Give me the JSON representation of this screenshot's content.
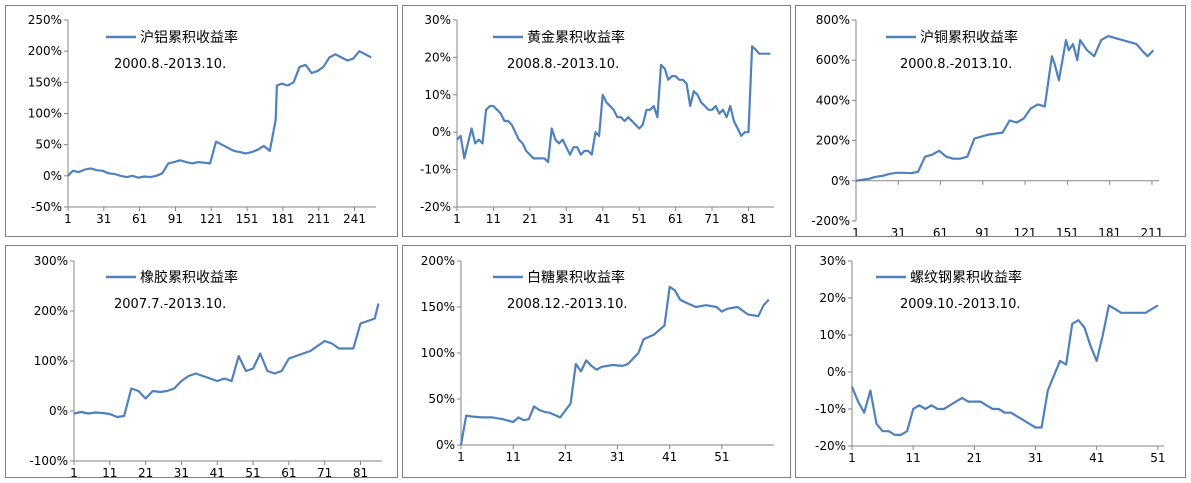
{
  "line_color": "#4f81bd",
  "chart_data": [
    {
      "type": "line",
      "legend": "沪铝累积收益率",
      "period": "2000.8.-2013.10.",
      "y_ticks": [
        -50,
        0,
        50,
        100,
        150,
        200,
        250
      ],
      "y_tick_labels": [
        "-50%",
        "0%",
        "50%",
        "100%",
        "150%",
        "200%",
        "250%"
      ],
      "ylim": [
        -50,
        250
      ],
      "x_ticks": [
        1,
        31,
        61,
        91,
        121,
        151,
        181,
        211,
        241
      ],
      "x_tick_labels": [
        "1",
        "31",
        "61",
        "91",
        "121",
        "151",
        "181",
        "211",
        "241"
      ],
      "xlim": [
        1,
        259
      ],
      "x_axis_at": -50,
      "series": [
        {
          "x": [
            1,
            5,
            10,
            15,
            20,
            25,
            30,
            35,
            40,
            45,
            50,
            55,
            60,
            65,
            70,
            75,
            80,
            85,
            90,
            95,
            100,
            105,
            110,
            115,
            120,
            125,
            130,
            135,
            140,
            145,
            150,
            155,
            160,
            165,
            170,
            175,
            176,
            180,
            185,
            190,
            195,
            200,
            205,
            210,
            215,
            220,
            225,
            230,
            235,
            240,
            245,
            250,
            255
          ],
          "y": [
            0,
            8,
            6,
            10,
            12,
            9,
            8,
            4,
            3,
            0,
            -2,
            0,
            -3,
            -1,
            -2,
            0,
            4,
            20,
            22,
            25,
            22,
            20,
            22,
            21,
            20,
            55,
            50,
            45,
            40,
            38,
            36,
            38,
            42,
            48,
            40,
            90,
            145,
            148,
            145,
            150,
            175,
            178,
            165,
            168,
            175,
            190,
            195,
            190,
            185,
            188,
            200,
            195,
            190
          ]
        }
      ]
    },
    {
      "type": "line",
      "legend": "黄金累积收益率",
      "period": "2008.8.-2013.10.",
      "y_ticks": [
        -20,
        -10,
        0,
        10,
        20,
        30
      ],
      "y_tick_labels": [
        "-20%",
        "-10%",
        "0%",
        "10%",
        "20%",
        "30%"
      ],
      "ylim": [
        -20,
        30
      ],
      "x_ticks": [
        1,
        11,
        21,
        31,
        41,
        51,
        61,
        71,
        81
      ],
      "x_tick_labels": [
        "1",
        "11",
        "21",
        "31",
        "41",
        "51",
        "61",
        "71",
        "81"
      ],
      "xlim": [
        1,
        88
      ],
      "x_axis_at": -20,
      "series": [
        {
          "x": [
            1,
            2,
            3,
            4,
            5,
            6,
            7,
            8,
            9,
            10,
            11,
            12,
            13,
            14,
            15,
            16,
            17,
            18,
            19,
            20,
            21,
            22,
            23,
            24,
            25,
            26,
            27,
            28,
            29,
            30,
            31,
            32,
            33,
            34,
            35,
            36,
            37,
            38,
            39,
            40,
            41,
            42,
            43,
            44,
            45,
            46,
            47,
            48,
            49,
            50,
            51,
            52,
            53,
            54,
            55,
            56,
            57,
            58,
            59,
            60,
            61,
            62,
            63,
            64,
            65,
            66,
            67,
            68,
            69,
            70,
            71,
            72,
            73,
            74,
            75,
            76,
            77,
            78,
            79,
            80,
            81,
            82,
            83,
            84,
            85,
            86,
            87
          ],
          "y": [
            -2,
            -1,
            -7,
            -3,
            1,
            -3,
            -2,
            -3,
            6,
            7,
            7,
            6,
            5,
            3,
            3,
            2,
            0,
            -2,
            -3,
            -5,
            -6,
            -7,
            -7,
            -7,
            -7,
            -8,
            1,
            -2,
            -3,
            -2,
            -4,
            -6,
            -4,
            -4,
            -6,
            -5,
            -5,
            -6,
            0,
            -1,
            10,
            8,
            7,
            6,
            4,
            4,
            3,
            4,
            3,
            2,
            1,
            2,
            6,
            6,
            7,
            4,
            18,
            17,
            14,
            15,
            15,
            14,
            14,
            13,
            7,
            11,
            10,
            8,
            7,
            6,
            6,
            7,
            5,
            6,
            4,
            7,
            3,
            1,
            -1,
            0,
            0,
            23,
            22,
            21,
            21,
            21,
            21
          ]
        }
      ]
    },
    {
      "type": "line",
      "legend": "沪铜累积收益率",
      "period": "2000.8.-2013.10.",
      "y_ticks": [
        -200,
        0,
        200,
        400,
        600,
        800
      ],
      "y_tick_labels": [
        "-200%",
        "0%",
        "200%",
        "400%",
        "600%",
        "800%"
      ],
      "ylim": [
        -200,
        800
      ],
      "x_ticks": [
        1,
        31,
        61,
        91,
        121,
        151,
        181,
        211
      ],
      "x_tick_labels": [
        "1",
        "31",
        "61",
        "91",
        "121",
        "151",
        "181",
        "211"
      ],
      "xlim": [
        1,
        216
      ],
      "x_axis_at": 0,
      "series": [
        {
          "x": [
            1,
            5,
            10,
            15,
            20,
            25,
            30,
            35,
            40,
            45,
            50,
            55,
            60,
            65,
            70,
            75,
            80,
            85,
            90,
            95,
            100,
            105,
            110,
            115,
            120,
            125,
            130,
            135,
            140,
            142,
            145,
            150,
            152,
            155,
            158,
            160,
            165,
            170,
            175,
            180,
            185,
            190,
            195,
            200,
            205,
            208,
            212
          ],
          "y": [
            0,
            5,
            10,
            20,
            25,
            35,
            40,
            40,
            38,
            45,
            120,
            130,
            150,
            120,
            110,
            110,
            120,
            210,
            220,
            230,
            235,
            240,
            300,
            290,
            310,
            360,
            380,
            370,
            620,
            580,
            500,
            700,
            650,
            680,
            600,
            700,
            650,
            620,
            700,
            720,
            710,
            700,
            690,
            680,
            640,
            620,
            650
          ]
        }
      ]
    },
    {
      "type": "line",
      "legend": "橡胶累积收益率",
      "period": "2007.7.-2013.10.",
      "y_ticks": [
        -100,
        0,
        100,
        200,
        300
      ],
      "y_tick_labels": [
        "-100%",
        "0%",
        "100%",
        "200%",
        "300%"
      ],
      "ylim": [
        -100,
        300
      ],
      "x_ticks": [
        1,
        11,
        21,
        31,
        41,
        51,
        61,
        71,
        81
      ],
      "x_tick_labels": [
        "1",
        "11",
        "21",
        "31",
        "41",
        "51",
        "61",
        "71",
        "81"
      ],
      "xlim": [
        1,
        87
      ],
      "x_axis_at": -100,
      "series": [
        {
          "x": [
            1,
            3,
            5,
            7,
            9,
            11,
            13,
            15,
            17,
            19,
            21,
            23,
            25,
            27,
            29,
            31,
            33,
            35,
            37,
            39,
            41,
            43,
            45,
            47,
            49,
            51,
            53,
            55,
            57,
            59,
            61,
            63,
            65,
            67,
            69,
            71,
            73,
            75,
            77,
            79,
            81,
            83,
            85,
            86
          ],
          "y": [
            -5,
            -2,
            -5,
            -3,
            -4,
            -6,
            -12,
            -10,
            45,
            40,
            25,
            40,
            38,
            40,
            45,
            60,
            70,
            75,
            70,
            65,
            60,
            65,
            60,
            110,
            80,
            85,
            115,
            80,
            75,
            80,
            105,
            110,
            115,
            120,
            130,
            140,
            135,
            125,
            125,
            125,
            175,
            180,
            185,
            215
          ]
        }
      ]
    },
    {
      "type": "line",
      "legend": "白糖累积收益率",
      "period": "2008.12.-2013.10.",
      "y_ticks": [
        0,
        50,
        100,
        150,
        200
      ],
      "y_tick_labels": [
        "0%",
        "50%",
        "100%",
        "150%",
        "200%"
      ],
      "ylim": [
        0,
        200
      ],
      "x_ticks": [
        1,
        11,
        21,
        31,
        41,
        51
      ],
      "x_tick_labels": [
        "1",
        "11",
        "21",
        "31",
        "41",
        "51"
      ],
      "xlim": [
        1,
        61
      ],
      "x_axis_at": 0,
      "series": [
        {
          "x": [
            1,
            2,
            3,
            5,
            7,
            9,
            11,
            12,
            13,
            14,
            15,
            16,
            17,
            18,
            20,
            22,
            23,
            24,
            25,
            26,
            27,
            28,
            30,
            32,
            33,
            35,
            36,
            38,
            40,
            41,
            42,
            43,
            44,
            46,
            48,
            50,
            51,
            52,
            54,
            56,
            58,
            59,
            60
          ],
          "y": [
            0,
            32,
            31,
            30,
            30,
            28,
            25,
            30,
            27,
            28,
            42,
            38,
            36,
            35,
            30,
            45,
            88,
            80,
            92,
            86,
            82,
            85,
            87,
            86,
            88,
            100,
            115,
            120,
            130,
            172,
            168,
            158,
            155,
            150,
            152,
            150,
            145,
            148,
            150,
            142,
            140,
            152,
            158
          ]
        }
      ]
    },
    {
      "type": "line",
      "legend": "螺纹钢累积收益率",
      "period": "2009.10.-2013.10.",
      "y_ticks": [
        -20,
        -10,
        0,
        10,
        20,
        30
      ],
      "y_tick_labels": [
        "-20%",
        "-10%",
        "0%",
        "10%",
        "20%",
        "30%"
      ],
      "ylim": [
        -20,
        30
      ],
      "x_ticks": [
        1,
        11,
        21,
        31,
        41,
        51
      ],
      "x_tick_labels": [
        "1",
        "11",
        "21",
        "31",
        "41",
        "51"
      ],
      "xlim": [
        1,
        52
      ],
      "x_axis_at": -20,
      "series": [
        {
          "x": [
            1,
            2,
            3,
            4,
            5,
            6,
            7,
            8,
            9,
            10,
            11,
            12,
            13,
            14,
            15,
            16,
            17,
            18,
            19,
            20,
            21,
            22,
            23,
            24,
            25,
            26,
            27,
            28,
            29,
            30,
            31,
            32,
            33,
            34,
            35,
            36,
            37,
            38,
            39,
            40,
            41,
            42,
            43,
            44,
            45,
            46,
            47,
            48,
            49,
            50,
            51
          ],
          "y": [
            -4,
            -8,
            -11,
            -5,
            -14,
            -16,
            -16,
            -17,
            -17,
            -16,
            -10,
            -9,
            -10,
            -9,
            -10,
            -10,
            -9,
            -8,
            -7,
            -8,
            -8,
            -8,
            -9,
            -10,
            -10,
            -11,
            -11,
            -12,
            -13,
            -14,
            -15,
            -15,
            -5,
            -1,
            3,
            2,
            13,
            14,
            12,
            7,
            3,
            10,
            18,
            17,
            16,
            16,
            16,
            16,
            16,
            17,
            18
          ]
        }
      ]
    }
  ]
}
